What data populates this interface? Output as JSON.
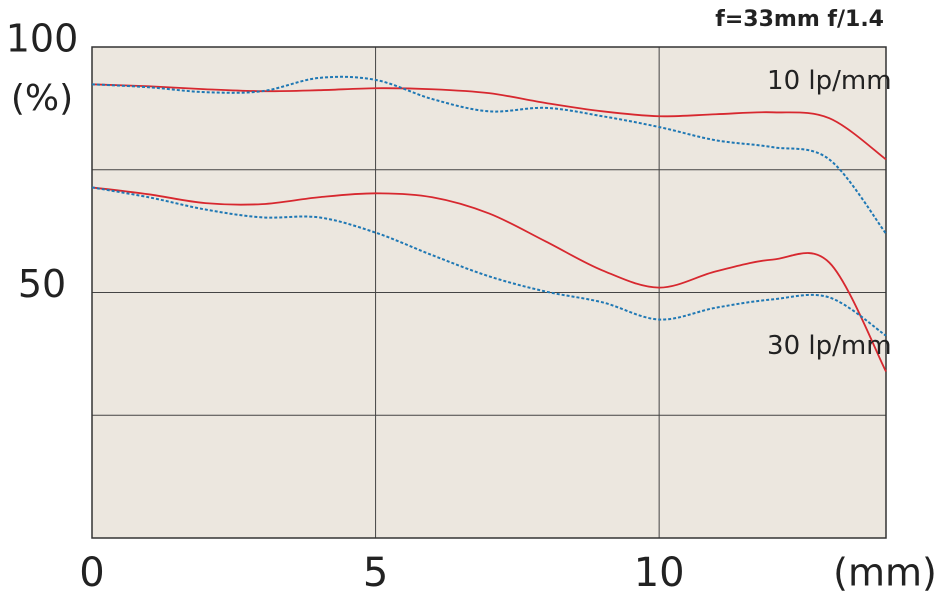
{
  "chart_data": {
    "type": "line",
    "title": "f=33mm f/1.4",
    "x_label": "(mm)",
    "y_label": "(%)",
    "x": [
      0,
      1,
      2,
      3,
      4,
      5,
      6,
      7,
      8,
      9,
      10,
      11,
      12,
      13,
      14
    ],
    "series": [
      {
        "color": "#d7282f",
        "dash": false,
        "values": [
          92.4,
          92.0,
          91.4,
          91.0,
          91.2,
          91.6,
          91.4,
          90.6,
          88.6,
          86.9,
          85.9,
          86.3,
          86.7,
          85.5,
          77.1
        ]
      },
      {
        "color": "#1f78b4",
        "dash": true,
        "values": [
          92.4,
          91.8,
          90.8,
          91.0,
          93.7,
          93.3,
          89.4,
          86.9,
          87.6,
          85.9,
          83.7,
          81.0,
          79.6,
          77.1,
          62.0
        ]
      },
      {
        "color": "#d7282f",
        "dash": false,
        "values": [
          71.4,
          70.0,
          68.2,
          68.0,
          69.4,
          70.2,
          69.4,
          66.1,
          60.4,
          54.5,
          51.0,
          54.3,
          56.7,
          56.1,
          33.9
        ]
      },
      {
        "color": "#1f78b4",
        "dash": true,
        "values": [
          71.4,
          69.4,
          66.9,
          65.3,
          65.3,
          62.2,
          57.6,
          53.3,
          50.2,
          48.0,
          44.5,
          46.9,
          48.6,
          49.0,
          41.2
        ]
      }
    ],
    "annotations": [
      {
        "text": "10 lp/mm",
        "x": 13,
        "y": 93
      },
      {
        "text": "30 lp/mm",
        "x": 13,
        "y": 39
      }
    ],
    "xlim": [
      0,
      14
    ],
    "ylim": [
      0,
      100
    ],
    "xticks": [
      0,
      5,
      10
    ],
    "yticks": [
      50,
      100
    ],
    "xgrid": [
      5,
      10
    ],
    "ygrid": [
      25,
      50,
      75
    ]
  }
}
